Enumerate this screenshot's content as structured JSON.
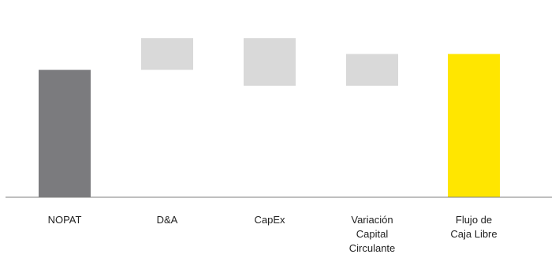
{
  "chart_data": {
    "type": "bar",
    "subtype": "waterfall",
    "title": "",
    "xlabel": "",
    "ylabel": "",
    "grid": false,
    "legend": "none",
    "categories": [
      [
        "NOPAT"
      ],
      [
        "D&A"
      ],
      [
        "CapEx"
      ],
      [
        "Variación",
        "Capital",
        "Circulante"
      ],
      [
        "Flujo de",
        "Caja Libre"
      ]
    ],
    "bars": [
      {
        "start": 0,
        "end": 80,
        "kind": "total"
      },
      {
        "start": 80,
        "end": 100,
        "kind": "increase"
      },
      {
        "start": 100,
        "end": 70,
        "kind": "decrease"
      },
      {
        "start": 70,
        "end": 90,
        "kind": "increase"
      },
      {
        "start": 0,
        "end": 90,
        "kind": "total"
      }
    ],
    "ylim": [
      0,
      112
    ],
    "colors": {
      "first_total": "#7b7b7e",
      "step": "#d9d9d9",
      "final_total": "#ffe600",
      "axis": "#7f7f7f"
    }
  }
}
